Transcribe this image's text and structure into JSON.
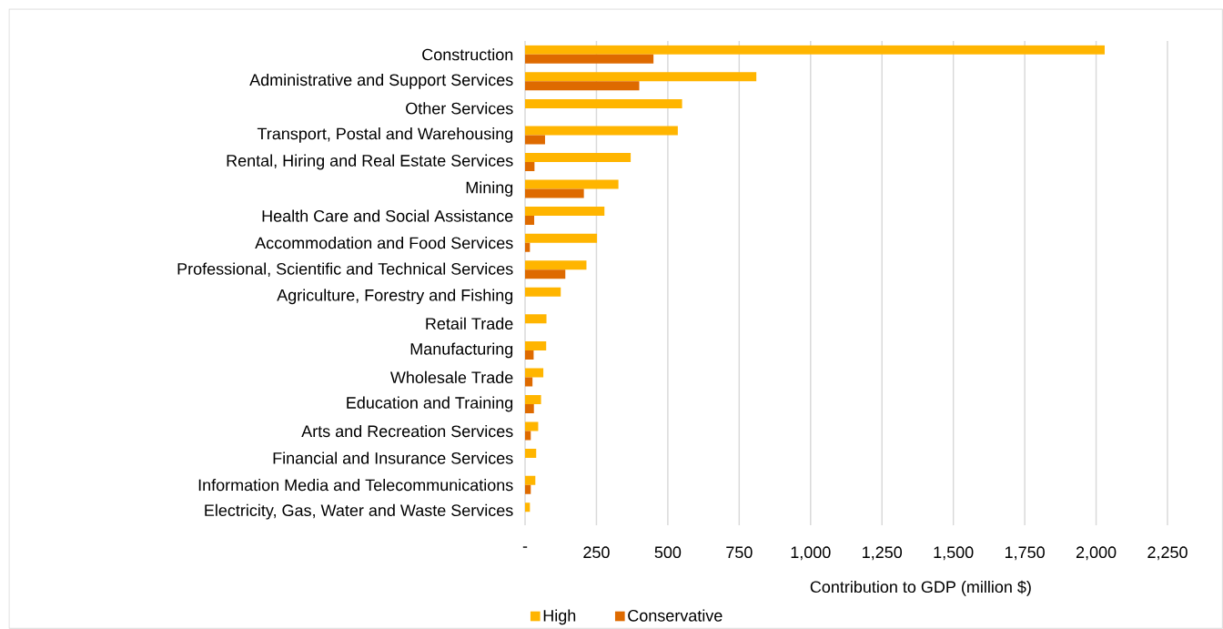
{
  "chart_data": {
    "type": "bar",
    "orientation": "horizontal",
    "categories": [
      "Construction",
      "Administrative and Support Services",
      "Other Services",
      "Transport, Postal and Warehousing",
      "Rental, Hiring and Real Estate Services",
      "Mining",
      "Health Care and Social Assistance",
      "Accommodation and Food Services",
      "Professional, Scientific and Technical Services",
      "Agriculture, Forestry and Fishing",
      "Retail Trade",
      "Manufacturing",
      "Wholesale Trade",
      "Education and Training",
      "Arts and Recreation Services",
      "Financial and Insurance Services",
      "Information Media and Telecommunications",
      "Electricity, Gas, Water and Waste Services"
    ],
    "series": [
      {
        "name": "High",
        "color": "#ffb500",
        "values": [
          2030,
          810,
          550,
          535,
          370,
          327,
          278,
          252,
          215,
          125,
          75,
          74,
          64,
          56,
          46,
          39,
          36,
          17
        ]
      },
      {
        "name": "Conservative",
        "color": "#de6a00",
        "values": [
          450,
          400,
          null,
          70,
          33,
          206,
          32,
          17,
          141,
          null,
          null,
          30,
          26,
          31,
          20,
          null,
          20,
          null
        ]
      }
    ],
    "xlabel": "Contribution to GDP (million $)",
    "xlim": [
      0,
      2250
    ],
    "xticks": [
      {
        "value": 0,
        "label": "-"
      },
      250,
      500,
      750,
      {
        "value": 1000,
        "label": "1,000"
      },
      {
        "value": 1250,
        "label": "1,250"
      },
      {
        "value": 1500,
        "label": "1,500"
      },
      {
        "value": 1750,
        "label": "1,750"
      },
      {
        "value": 2000,
        "label": "2,000"
      },
      {
        "value": 2250,
        "label": "2,250"
      }
    ],
    "grid": "x",
    "legend": "bottom"
  }
}
